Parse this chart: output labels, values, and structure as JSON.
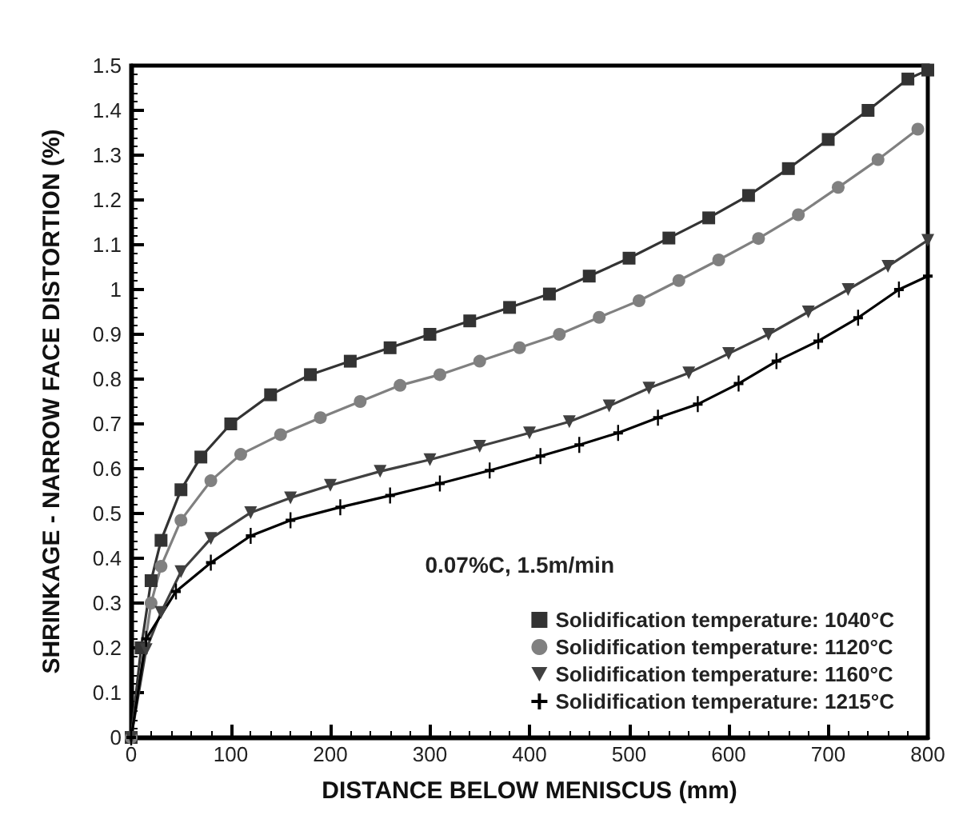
{
  "chart_data": {
    "type": "line",
    "xlabel": "DISTANCE BELOW MENISCUS (mm)",
    "ylabel": "SHRINKAGE - NARROW FACE DISTORTION (%)",
    "legend_title": "0.07%C, 1.5m/min",
    "legend": "bottom right",
    "grid": false,
    "line_style": "solid",
    "xlim": [
      0,
      800
    ],
    "ylim": [
      0,
      1.5
    ],
    "xticks": [
      0,
      100,
      200,
      300,
      400,
      500,
      600,
      700,
      800
    ],
    "yticks": [
      0,
      0.1,
      0.2,
      0.3,
      0.4,
      0.5,
      0.6,
      0.7,
      0.8,
      0.9,
      1,
      1.1,
      1.2,
      1.3,
      1.4,
      1.5
    ],
    "series": [
      {
        "name": "Solidification temperature: 1040°C",
        "color": "#333333",
        "marker": "square",
        "x": [
          0,
          10,
          20,
          30,
          50,
          70,
          100,
          140,
          180,
          220,
          260,
          300,
          340,
          380,
          420,
          460,
          500,
          540,
          580,
          620,
          660,
          700,
          740,
          780,
          800
        ],
        "values": [
          0,
          0.2,
          0.35,
          0.44,
          0.553,
          0.626,
          0.7,
          0.765,
          0.81,
          0.84,
          0.87,
          0.9,
          0.93,
          0.96,
          0.99,
          1.03,
          1.07,
          1.115,
          1.16,
          1.21,
          1.27,
          1.335,
          1.4,
          1.47,
          1.49
        ]
      },
      {
        "name": "Solidification temperature: 1120°C",
        "color": "#808080",
        "marker": "circle",
        "x": [
          0,
          20,
          30,
          50,
          80,
          110,
          150,
          190,
          230,
          270,
          310,
          350,
          390,
          430,
          470,
          510,
          550,
          590,
          630,
          670,
          710,
          750,
          790
        ],
        "values": [
          0,
          0.3,
          0.382,
          0.485,
          0.573,
          0.632,
          0.676,
          0.714,
          0.75,
          0.786,
          0.81,
          0.84,
          0.87,
          0.9,
          0.938,
          0.975,
          1.02,
          1.066,
          1.114,
          1.167,
          1.228,
          1.29,
          1.358
        ]
      },
      {
        "name": "Solidification temperature: 1160°C",
        "color": "#404040",
        "marker": "triangle",
        "x": [
          0,
          15,
          30,
          50,
          80,
          120,
          160,
          200,
          250,
          300,
          350,
          400,
          440,
          480,
          520,
          560,
          600,
          640,
          680,
          720,
          760,
          800
        ],
        "values": [
          0,
          0.196,
          0.279,
          0.37,
          0.444,
          0.502,
          0.535,
          0.563,
          0.594,
          0.62,
          0.65,
          0.68,
          0.705,
          0.74,
          0.78,
          0.814,
          0.857,
          0.9,
          0.95,
          1,
          1.052,
          1.11
        ]
      },
      {
        "name": "Solidification temperature: 1215°C",
        "color": "#000000",
        "marker": "cross",
        "x": [
          0,
          15,
          45,
          80,
          120,
          160,
          210,
          260,
          310,
          360,
          411,
          450,
          489,
          529,
          569,
          610,
          648,
          690,
          730,
          771,
          800
        ],
        "values": [
          0,
          0.22,
          0.326,
          0.39,
          0.45,
          0.485,
          0.514,
          0.54,
          0.567,
          0.596,
          0.628,
          0.653,
          0.68,
          0.714,
          0.744,
          0.79,
          0.84,
          0.885,
          0.937,
          1,
          1.03
        ]
      }
    ]
  }
}
